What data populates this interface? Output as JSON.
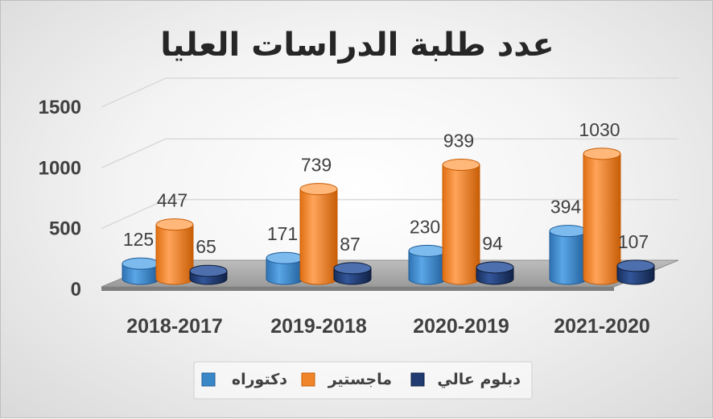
{
  "chart_data": {
    "type": "bar",
    "title": "عدد طلبة الدراسات العليا",
    "xlabel": "",
    "ylabel": "",
    "categories": [
      "2018-2017",
      "2019-2018",
      "2020-2019",
      "2021-2020"
    ],
    "series": [
      {
        "name": "دكتوراه",
        "values": [
          125,
          171,
          230,
          394
        ],
        "color": "#3a87c8"
      },
      {
        "name": "ماجستير",
        "values": [
          447,
          739,
          939,
          1030
        ],
        "color": "#f0842a"
      },
      {
        "name": "دبلوم عالي",
        "values": [
          65,
          87,
          94,
          107
        ],
        "color": "#1f3b72"
      }
    ],
    "ylim": [
      0,
      1500
    ],
    "yticks": [
      "0",
      "500",
      "1000",
      "1500"
    ],
    "grid": true,
    "legend": "bottom",
    "data_labels": true,
    "style": "3d-cylinder"
  }
}
